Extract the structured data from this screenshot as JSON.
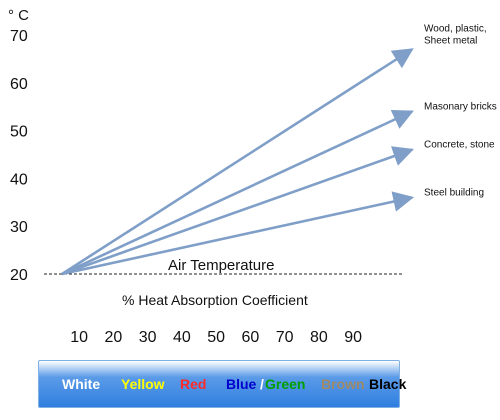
{
  "chart_data": {
    "type": "line",
    "y_unit": "° C",
    "y_ticks": [
      20,
      30,
      40,
      50,
      60,
      70
    ],
    "x_ticks": [
      10,
      20,
      30,
      40,
      50,
      60,
      70,
      80,
      90
    ],
    "xlabel": "% Heat Absorption Coefficient",
    "reference_line": {
      "label": "Air Temperature",
      "value": 20
    },
    "origin": {
      "x": 5,
      "y": 20
    },
    "series": [
      {
        "name": "Wood, plastic, Sheet metal",
        "end": {
          "x": 100,
          "y": 67
        }
      },
      {
        "name": "Masonary bricks",
        "end": {
          "x": 100,
          "y": 54
        }
      },
      {
        "name": "Concrete, stone",
        "end": {
          "x": 100,
          "y": 46
        }
      },
      {
        "name": "Steel building",
        "end": {
          "x": 100,
          "y": 36
        }
      }
    ],
    "grid": false,
    "colors": {
      "series": "#7f9fc8",
      "text": "#111111"
    }
  },
  "color_scale": [
    {
      "label": "White",
      "color": "#ffffff"
    },
    {
      "label": "Yellow",
      "color": "#ffff00"
    },
    {
      "label": "Red",
      "color": "#ff2a2a"
    },
    {
      "label": "Blue",
      "color": "#0000cc"
    },
    {
      "label": "/",
      "color": "#ffffff"
    },
    {
      "label": "Green",
      "color": "#00a000"
    },
    {
      "label": "Brown",
      "color": "#a08a66"
    },
    {
      "label": "Black",
      "color": "#000000"
    }
  ]
}
